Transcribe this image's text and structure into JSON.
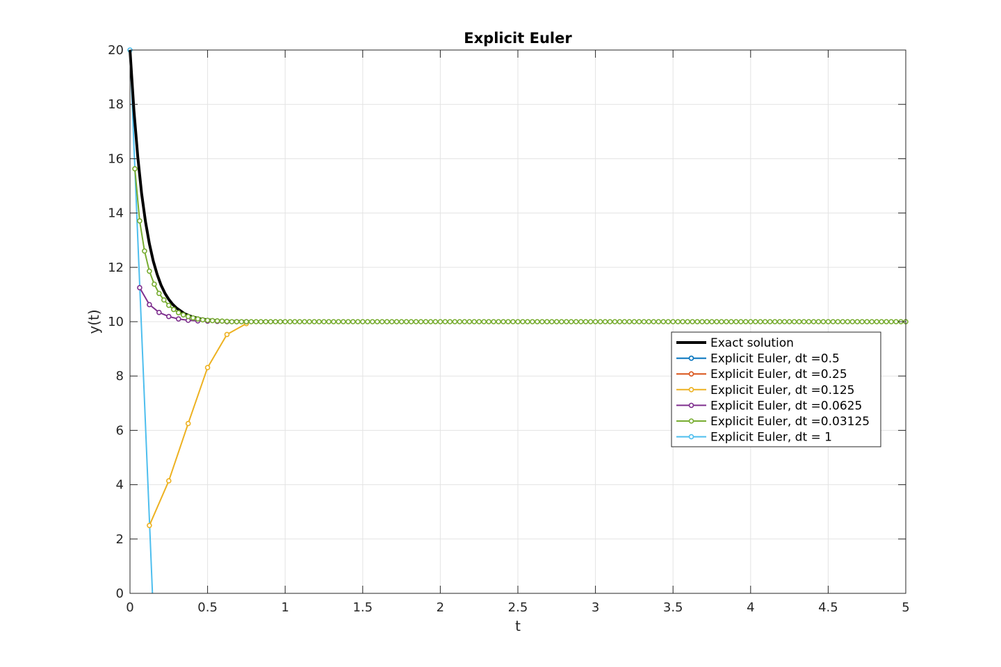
{
  "chart_data": {
    "type": "line",
    "title": "Explicit Euler",
    "xlabel": "t",
    "ylabel": "y(t)",
    "xlim": [
      0,
      5
    ],
    "ylim": [
      0,
      20
    ],
    "xticks": [
      0,
      0.5,
      1,
      1.5,
      2,
      2.5,
      3,
      3.5,
      4,
      4.5,
      5
    ],
    "yticks": [
      0,
      2,
      4,
      6,
      8,
      10,
      12,
      14,
      16,
      18,
      20
    ],
    "xtick_labels": [
      "0",
      "0.5",
      "1",
      "1.5",
      "2",
      "2.5",
      "3",
      "3.5",
      "4",
      "4.5",
      "5"
    ],
    "ytick_labels": [
      "0",
      "2",
      "4",
      "6",
      "8",
      "10",
      "12",
      "14",
      "16",
      "18",
      "20"
    ],
    "grid": true,
    "legend_position": "right-middle",
    "series": [
      {
        "name": "Exact solution",
        "color": "#000000",
        "markers": false,
        "x": [
          0,
          0.025,
          0.05,
          0.075,
          0.1,
          0.125,
          0.15,
          0.175,
          0.2,
          0.225,
          0.25,
          0.275,
          0.3,
          0.35,
          0.4,
          0.45,
          0.5,
          0.55,
          0.6,
          0.65,
          0.7,
          0.8,
          0.9,
          1.0
        ],
        "y": [
          20,
          17.79,
          16.07,
          14.72,
          13.68,
          12.87,
          12.23,
          11.74,
          11.35,
          11.05,
          10.82,
          10.64,
          10.5,
          10.3,
          10.18,
          10.11,
          10.07,
          10.04,
          10.02,
          10.01,
          10.01,
          10.0,
          10.0,
          10.0
        ]
      },
      {
        "name": "Explicit Euler, dt =0.5",
        "color": "#0072BD",
        "markers": true,
        "x": [],
        "y": []
      },
      {
        "name": "Explicit Euler, dt =0.25",
        "color": "#D95319",
        "markers": true,
        "x": [],
        "y": []
      },
      {
        "name": "Explicit Euler, dt =0.125",
        "color": "#EDB120",
        "markers": true,
        "x": [
          0.125,
          0.25,
          0.375,
          0.5,
          0.625,
          0.75
        ],
        "y": [
          2.5,
          4.14,
          6.25,
          8.31,
          9.53,
          9.93
        ]
      },
      {
        "name": "Explicit Euler, dt =0.0625",
        "color": "#7E2F8E",
        "markers": true,
        "x": [
          0.0625,
          0.125,
          0.1875,
          0.25,
          0.3125,
          0.375,
          0.4375,
          0.5,
          0.5625,
          0.625,
          0.6875,
          0.75
        ],
        "y": [
          11.25,
          10.63,
          10.34,
          10.19,
          10.1,
          10.05,
          10.03,
          10.02,
          10.01,
          10.0,
          10.0,
          10.0
        ]
      },
      {
        "name": "Explicit Euler, dt =0.03125",
        "color": "#77AC30",
        "markers": true,
        "dt": 0.03125,
        "start": 0.03125,
        "end": 5.0,
        "y_head": [
          15.63,
          13.71,
          12.6,
          11.86,
          11.38,
          11.04,
          10.8,
          10.6,
          10.45,
          10.33,
          10.25,
          10.19,
          10.14,
          10.1,
          10.07,
          10.05,
          10.04,
          10.03,
          10.02,
          10.01
        ],
        "y_tail": 10.0
      },
      {
        "name": "Explicit Euler, dt = 1",
        "color": "#4DBEEE",
        "markers": true,
        "x": [
          0,
          0.1445
        ],
        "y": [
          20,
          0
        ],
        "marker_x": [
          0
        ],
        "marker_y": [
          20
        ]
      }
    ]
  }
}
